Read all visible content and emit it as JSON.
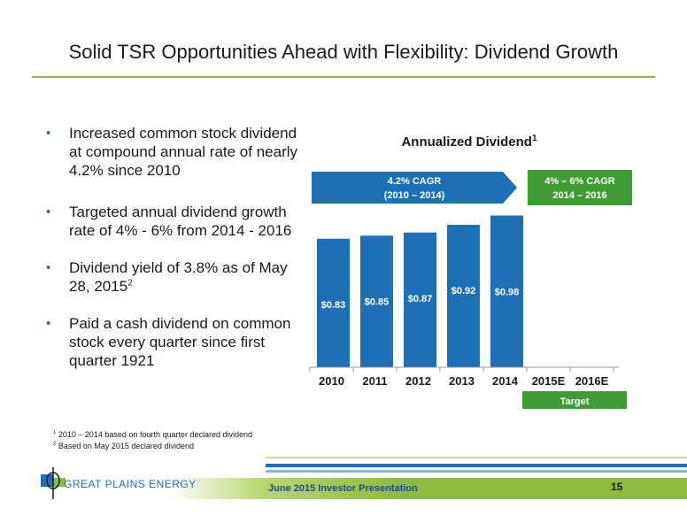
{
  "slide": {
    "title": "Solid TSR Opportunities Ahead with Flexibility: Dividend Growth",
    "bullets": [
      {
        "text": "Increased common stock dividend at compound annual rate of nearly 4.2% since 2010",
        "sup": ""
      },
      {
        "text": "Targeted annual dividend growth rate of 4% - 6% from 2014 - 2016",
        "sup": ""
      },
      {
        "text": "Dividend yield of 3.8% as of May 28, 2015",
        "sup": "2"
      },
      {
        "text": "Paid a cash dividend on common stock every quarter since first quarter 1921",
        "sup": ""
      }
    ],
    "footnotes": [
      {
        "num": "1",
        "text": "2010 – 2014 based on fourth quarter declared dividend"
      },
      {
        "num": "2",
        "text": "Based on May 2015 declared dividend"
      }
    ],
    "footer": {
      "presentation": "June 2015 Investor Presentation",
      "page_number": "15",
      "logo_text": "GREAT PLAINS ENERGY"
    }
  },
  "chart_data": {
    "type": "bar",
    "title": "Annualized Dividend",
    "title_sup": "1",
    "categories": [
      "2010",
      "2011",
      "2012",
      "2013",
      "2014",
      "2015E",
      "2016E"
    ],
    "values": [
      0.83,
      0.85,
      0.87,
      0.92,
      0.98,
      null,
      null
    ],
    "data_labels": [
      "$0.83",
      "$0.85",
      "$0.87",
      "$0.92",
      "$0.98",
      "",
      ""
    ],
    "ylim": [
      0,
      1.0
    ],
    "grid": false,
    "annotations": {
      "cagr_arrow": {
        "line1": "4.2% CAGR",
        "line2": "(2010 – 2014)"
      },
      "target_box": {
        "line1": "4% – 6% CAGR",
        "line2": "2014 – 2016"
      },
      "target_label": "Target"
    },
    "colors": {
      "bar": "#1f6fb5",
      "arrow": "#1f6fb5",
      "target": "#3f9b35",
      "axis": "#999999"
    }
  }
}
